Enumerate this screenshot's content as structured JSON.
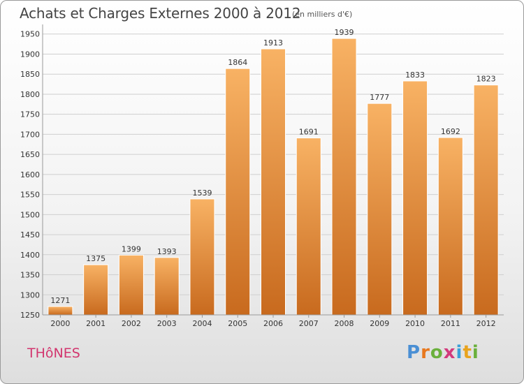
{
  "title": "Achats et Charges Externes 2000 à 2012",
  "subtitle": "(en milliers d'€)",
  "commune": "THôNES",
  "logo": {
    "letters": [
      "P",
      "r",
      "o",
      "x",
      "i",
      "t",
      "i"
    ],
    "colors": [
      "#4a8fd4",
      "#e8781e",
      "#6ab03c",
      "#d23a7c",
      "#3aa0d8",
      "#e8a31e",
      "#6ab03c"
    ]
  },
  "colors": {
    "bar": "#f3a04f",
    "bar_light": "#f8b264",
    "bar_dark": "#c86a1e",
    "grid": "#cfcfcf"
  },
  "chart_data": {
    "type": "bar",
    "categories": [
      "2000",
      "2001",
      "2002",
      "2003",
      "2004",
      "2005",
      "2006",
      "2007",
      "2008",
      "2009",
      "2010",
      "2011",
      "2012"
    ],
    "values": [
      1271,
      1375,
      1399,
      1393,
      1539,
      1864,
      1913,
      1691,
      1939,
      1777,
      1833,
      1692,
      1823
    ],
    "yticks": [
      1250,
      1300,
      1350,
      1400,
      1450,
      1500,
      1550,
      1600,
      1650,
      1700,
      1750,
      1800,
      1850,
      1900,
      1950
    ],
    "ylim": [
      1250,
      1960
    ],
    "grid": true,
    "xlabel": "",
    "ylabel": ""
  }
}
